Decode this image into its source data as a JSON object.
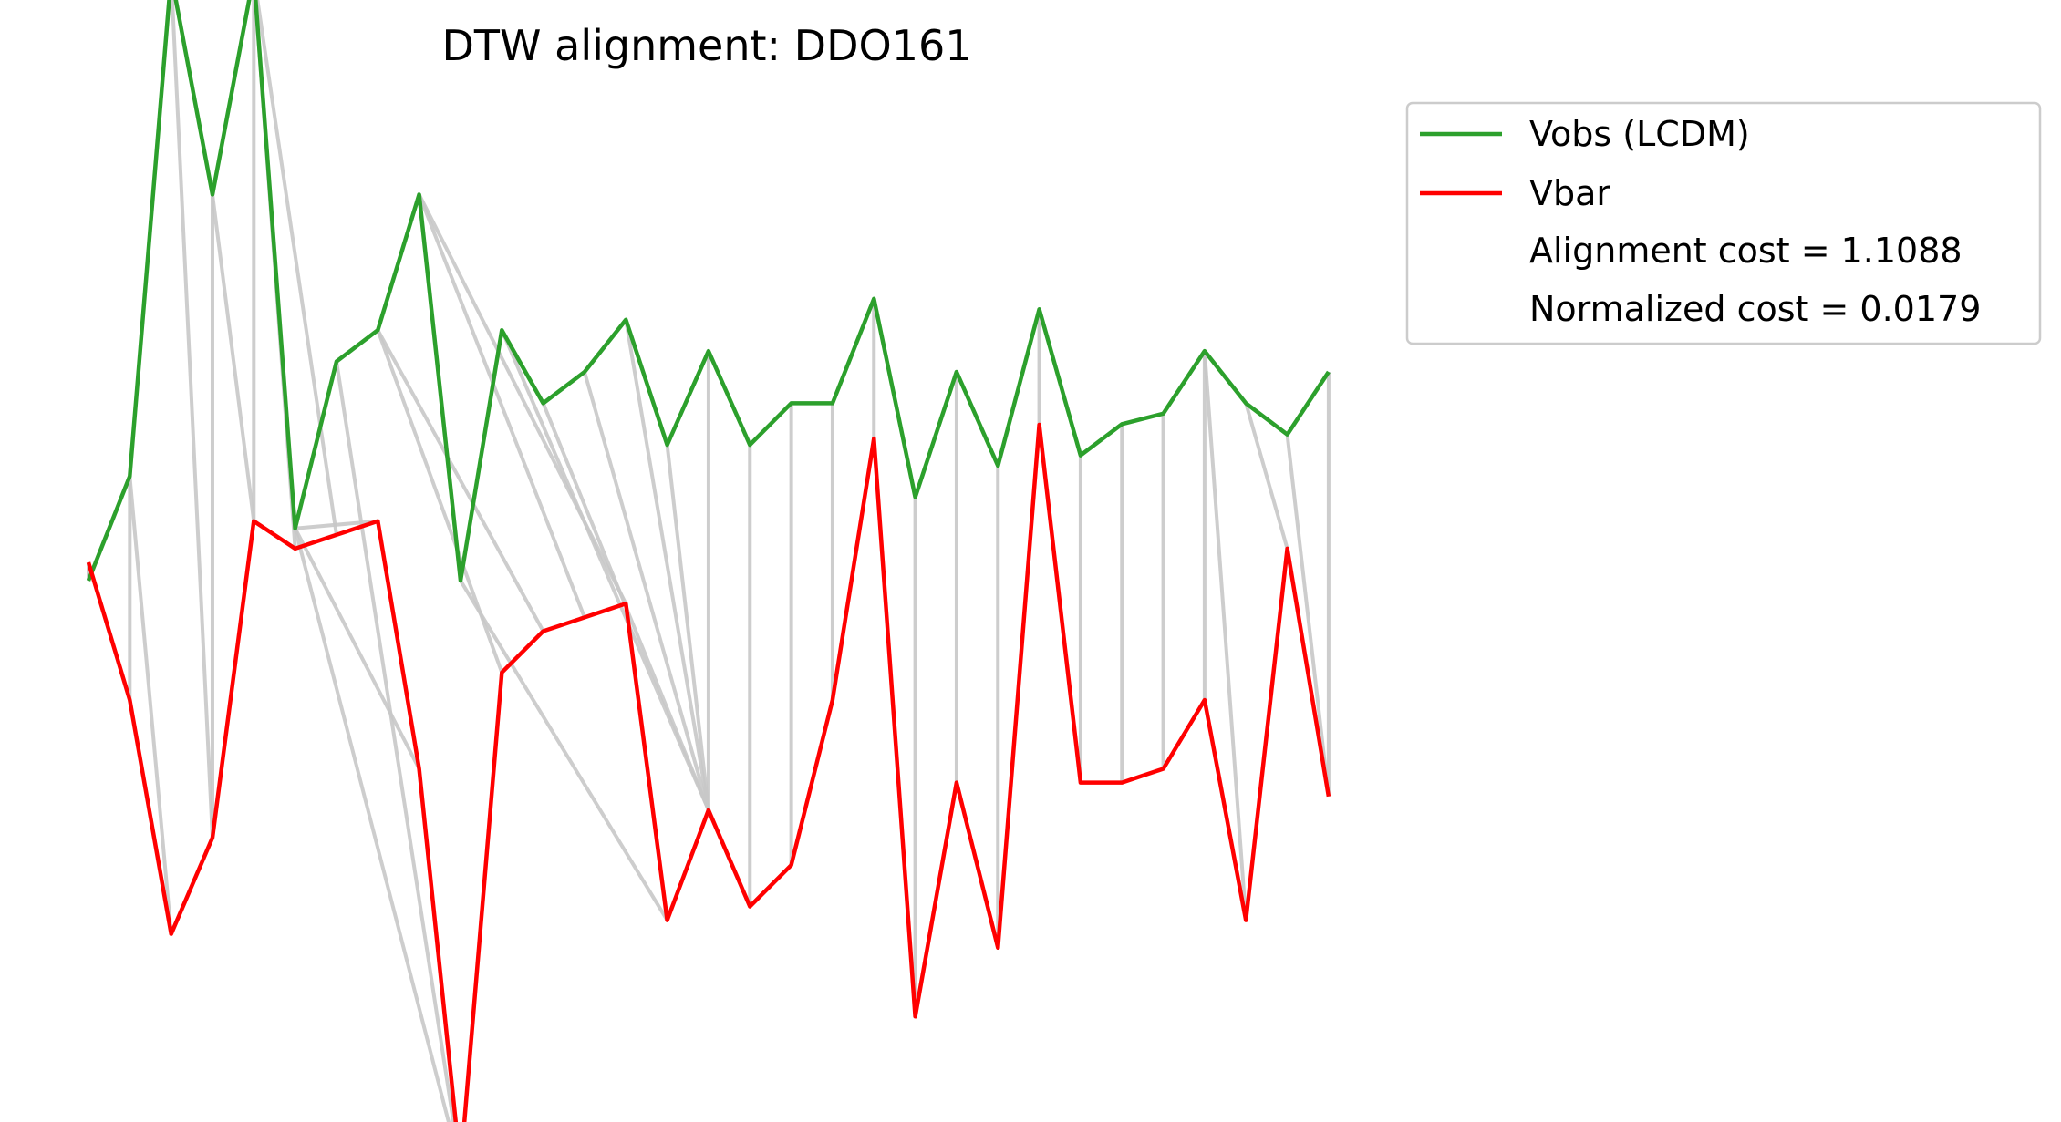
{
  "chart_data": {
    "type": "line",
    "title": "DTW alignment: DDO161",
    "xlabel": "",
    "ylabel": "",
    "axes_visible": false,
    "grid": false,
    "legend_placement": "outside-top-right",
    "colors": {
      "Vobs (LCDM)": "#2ca02c",
      "Vbar": "#ff0000",
      "connections": "#c8c8c8"
    },
    "x": [
      0,
      1,
      2,
      3,
      4,
      5,
      6,
      7,
      8,
      9,
      10,
      11,
      12,
      13,
      14,
      15,
      16,
      17,
      18,
      19,
      20,
      21,
      22,
      23,
      24,
      25,
      26,
      27,
      28,
      29,
      30
    ],
    "series": [
      {
        "name": "Vobs (LCDM)",
        "values": [
          0.4,
          0.5,
          0.98,
          0.77,
          0.98,
          0.45,
          0.61,
          0.64,
          0.77,
          0.4,
          0.64,
          0.57,
          0.6,
          0.65,
          0.53,
          0.62,
          0.53,
          0.57,
          0.57,
          0.67,
          0.48,
          0.6,
          0.51,
          0.66,
          0.52,
          0.55,
          0.56,
          0.62,
          0.57,
          0.54,
          0.6
        ]
      },
      {
        "name": "Vbar",
        "values": [
          0.6,
          0.5,
          0.33,
          0.4,
          0.63,
          0.61,
          0.62,
          0.63,
          0.45,
          0.16,
          0.52,
          0.55,
          0.56,
          0.57,
          0.34,
          0.42,
          0.35,
          0.38,
          0.5,
          0.69,
          0.27,
          0.44,
          0.32,
          0.7,
          0.44,
          0.44,
          0.45,
          0.5,
          0.34,
          0.61,
          0.43
        ]
      }
    ],
    "alignment_path": [
      [
        0,
        0
      ],
      [
        1,
        1
      ],
      [
        1,
        2
      ],
      [
        2,
        3
      ],
      [
        3,
        3
      ],
      [
        3,
        4
      ],
      [
        4,
        4
      ],
      [
        4,
        5
      ],
      [
        4,
        6
      ],
      [
        5,
        7
      ],
      [
        5,
        8
      ],
      [
        5,
        9
      ],
      [
        6,
        9
      ],
      [
        7,
        10
      ],
      [
        7,
        11
      ],
      [
        8,
        12
      ],
      [
        8,
        13
      ],
      [
        9,
        14
      ],
      [
        10,
        15
      ],
      [
        11,
        15
      ],
      [
        12,
        15
      ],
      [
        13,
        15
      ],
      [
        14,
        15
      ],
      [
        15,
        15
      ],
      [
        16,
        16
      ],
      [
        17,
        17
      ],
      [
        18,
        18
      ],
      [
        19,
        19
      ],
      [
        20,
        20
      ],
      [
        21,
        21
      ],
      [
        22,
        22
      ],
      [
        23,
        23
      ],
      [
        24,
        24
      ],
      [
        25,
        25
      ],
      [
        26,
        26
      ],
      [
        27,
        27
      ],
      [
        27,
        28
      ],
      [
        28,
        29
      ],
      [
        29,
        30
      ],
      [
        30,
        30
      ]
    ],
    "legend": {
      "entries": [
        "Vobs (LCDM)",
        "Vbar"
      ],
      "alignment_cost_text": "Alignment cost = 1.1088",
      "normalized_cost_text": "Normalized cost = 0.0179"
    }
  }
}
